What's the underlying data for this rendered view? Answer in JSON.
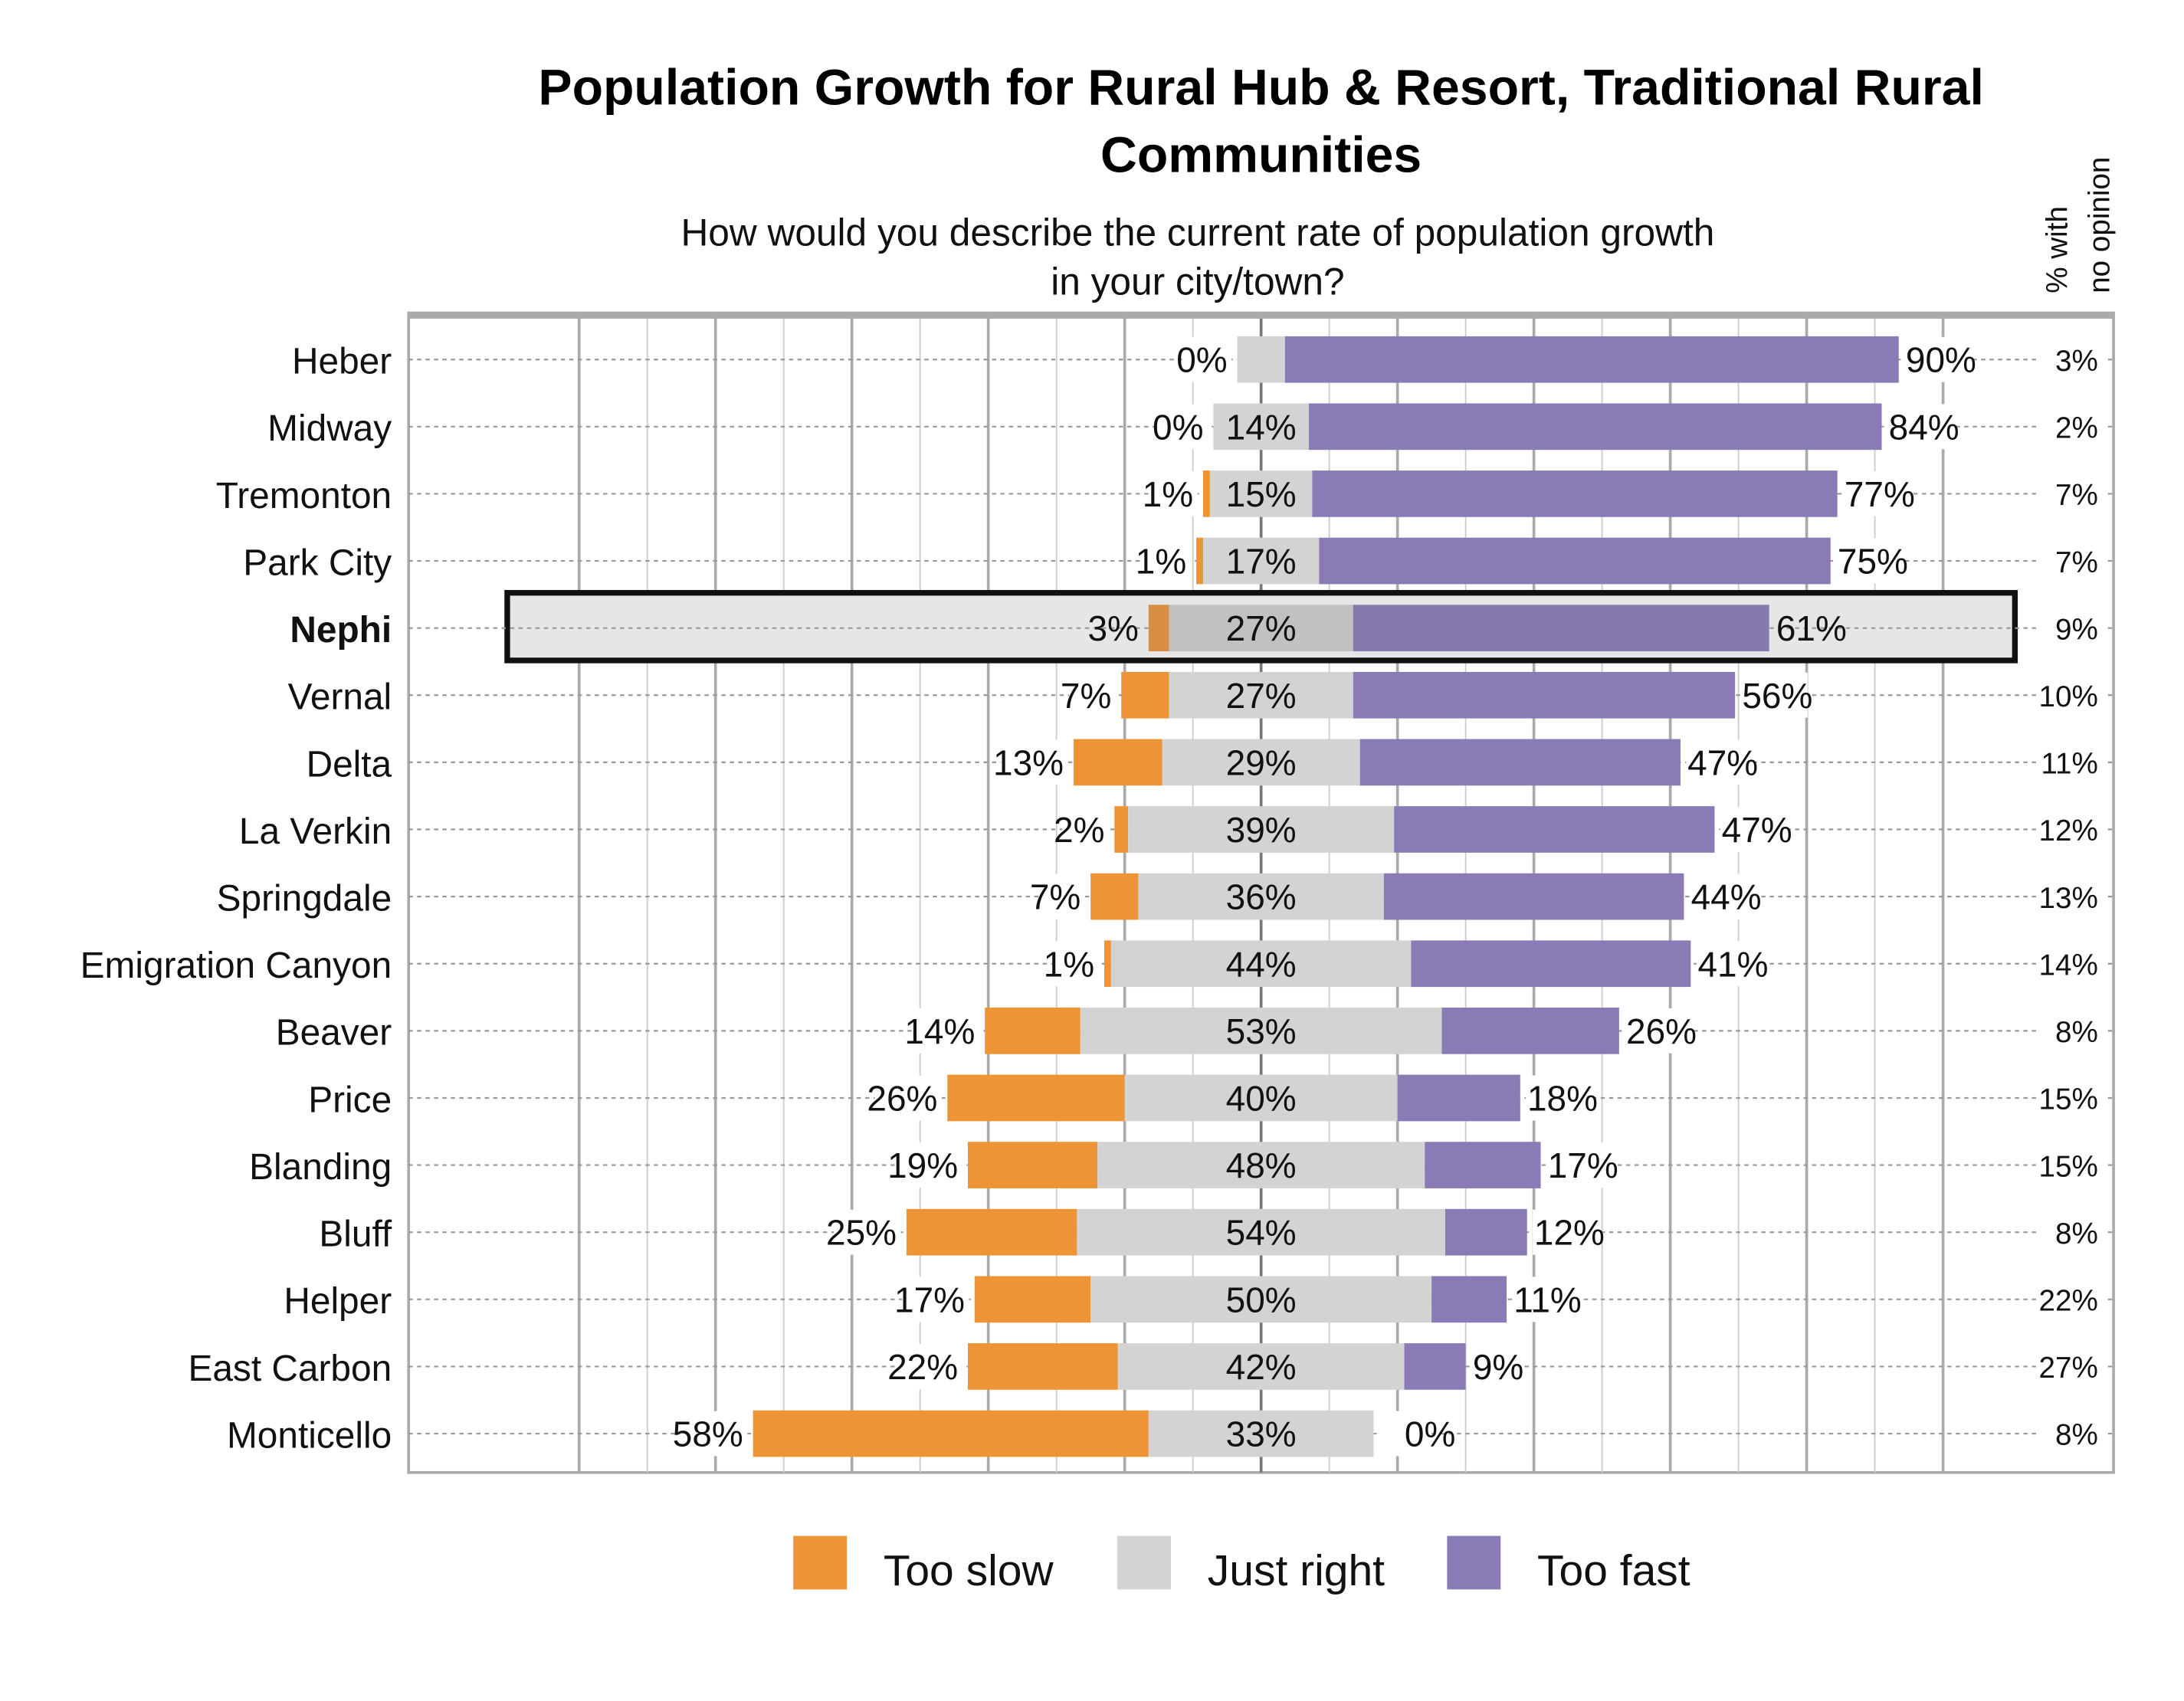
{
  "chart_data": {
    "type": "bar",
    "orientation": "horizontal",
    "stacking": "diverging",
    "title": "Population Growth for Rural Hub & Resort, Traditional Rural Communities",
    "subtitle": "How would you describe the current rate of population growth in your city/town?",
    "subtitle_lines": [
      "How would you describe the current rate of population growth",
      "in your city/town?"
    ],
    "title_lines": [
      "Population Growth for Rural Hub & Resort, Traditional Rural",
      "Communities"
    ],
    "no_opinion_header": [
      "% with",
      "no opinion"
    ],
    "categories": [
      "Heber",
      "Midway",
      "Tremonton",
      "Park City",
      "Nephi",
      "Vernal",
      "Delta",
      "La Verkin",
      "Springdale",
      "Emigration Canyon",
      "Beaver",
      "Price",
      "Blanding",
      "Bluff",
      "Helper",
      "East Carbon",
      "Monticello"
    ],
    "highlighted_category": "Nephi",
    "series": [
      {
        "name": "Too slow",
        "color": "#ED9436",
        "values": [
          0,
          0,
          1,
          1,
          3,
          7,
          13,
          2,
          7,
          1,
          14,
          26,
          19,
          25,
          17,
          22,
          58
        ]
      },
      {
        "name": "Just right",
        "color": "#D3D3D3",
        "values": [
          7,
          14,
          15,
          17,
          27,
          27,
          29,
          39,
          36,
          44,
          53,
          40,
          48,
          54,
          50,
          42,
          33
        ]
      },
      {
        "name": "Too fast",
        "color": "#8A7BB6",
        "values": [
          90,
          84,
          77,
          75,
          61,
          56,
          47,
          47,
          44,
          41,
          26,
          18,
          17,
          12,
          11,
          9,
          0
        ]
      }
    ],
    "just_right_label_shown": [
      false,
      true,
      true,
      true,
      true,
      true,
      true,
      true,
      true,
      true,
      true,
      true,
      true,
      true,
      true,
      true,
      true
    ],
    "no_opinion": [
      3,
      2,
      7,
      7,
      9,
      10,
      11,
      12,
      13,
      14,
      8,
      15,
      15,
      8,
      22,
      27,
      8
    ],
    "unit": "%",
    "xlim": [
      -125,
      125
    ],
    "grid": true,
    "legend_position": "bottom",
    "highlight_colors": {
      "Too slow": "#D88F45",
      "Just right": "#C1C1C1",
      "Too fast": "#8679AD",
      "background": "#E6E6E6"
    }
  }
}
